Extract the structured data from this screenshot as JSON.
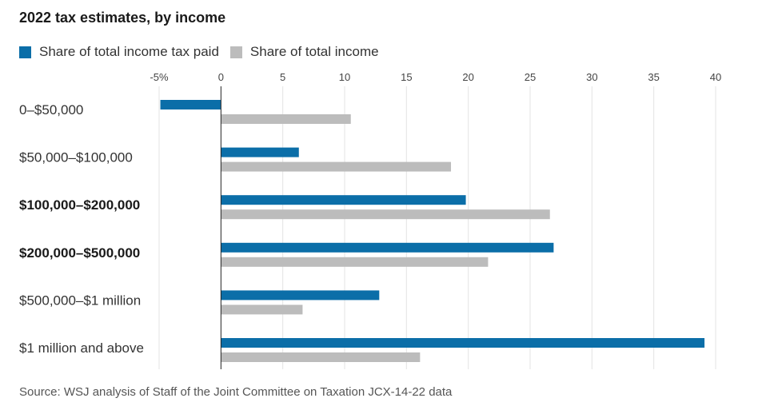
{
  "colors": {
    "tax_paid": "#0b6ea8",
    "income": "#bcbcbc",
    "grid": "#e3e3e3",
    "axis": "#222222"
  },
  "chart_data": {
    "type": "bar",
    "orientation": "horizontal",
    "title": "2022 tax estimates, by income",
    "source": "Source: WSJ analysis of Staff of the Joint Committee on Taxation JCX-14-22 data",
    "categories": [
      "0–$50,000",
      "$50,000–$100,000",
      "$100,000–$200,000",
      "$200,000–$500,000",
      "$500,000–$1 million",
      "$1 million and above"
    ],
    "bold_categories": [
      "$100,000–$200,000",
      "$200,000–$500,000"
    ],
    "series": [
      {
        "name": "Share of total income tax paid",
        "color_key": "tax_paid",
        "values": [
          -4.9,
          6.3,
          19.8,
          26.9,
          12.8,
          39.1
        ]
      },
      {
        "name": "Share of total income",
        "color_key": "income",
        "values": [
          10.5,
          18.6,
          26.6,
          21.6,
          6.6,
          16.1
        ]
      }
    ],
    "xlim": [
      -5,
      40
    ],
    "xticks": [
      -5,
      0,
      5,
      10,
      15,
      20,
      25,
      30,
      35,
      40
    ],
    "xtick_labels": [
      "-5%",
      "0",
      "5",
      "10",
      "15",
      "20",
      "25",
      "30",
      "35",
      "40"
    ],
    "grid": true,
    "legend_position": "top-left"
  }
}
